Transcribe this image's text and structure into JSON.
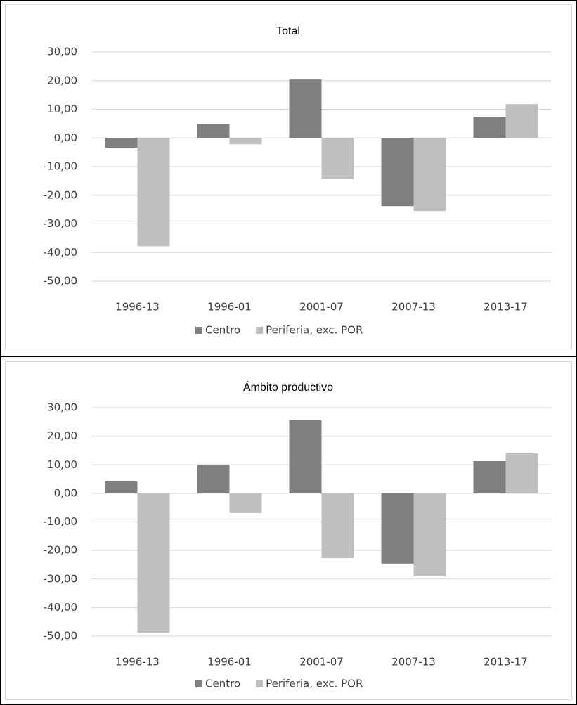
{
  "chart_data": [
    {
      "type": "bar",
      "title": "Total",
      "categories": [
        "1996-13",
        "1996-01",
        "2001-07",
        "2007-13",
        "2013-17"
      ],
      "series": [
        {
          "name": "Centro",
          "color": "#7f7f7f",
          "values": [
            -3.4,
            4.9,
            20.4,
            -23.8,
            7.4
          ]
        },
        {
          "name": "Periferia, exc. POR",
          "color": "#bfbfbf",
          "values": [
            -37.8,
            -2.2,
            -14.2,
            -25.5,
            11.8
          ]
        }
      ],
      "ylim": [
        -50,
        30
      ],
      "yticks": [
        {
          "value": -50,
          "label": "-50,00"
        },
        {
          "value": -40,
          "label": "-40,00"
        },
        {
          "value": -30,
          "label": "-30,00"
        },
        {
          "value": -20,
          "label": "-20,00"
        },
        {
          "value": -10,
          "label": "-10,00"
        },
        {
          "value": 0,
          "label": "0,00"
        },
        {
          "value": 10,
          "label": "10,00"
        },
        {
          "value": 20,
          "label": "20,00"
        },
        {
          "value": 30,
          "label": "30,00"
        }
      ],
      "grid": true,
      "legend": "bottom"
    },
    {
      "type": "bar",
      "title": "Ámbito productivo",
      "categories": [
        "1996-13",
        "1996-01",
        "2001-07",
        "2007-13",
        "2013-17"
      ],
      "series": [
        {
          "name": "Centro",
          "color": "#7f7f7f",
          "values": [
            4.2,
            10.1,
            25.6,
            -24.6,
            11.3
          ]
        },
        {
          "name": "Periferia, exc. POR",
          "color": "#bfbfbf",
          "values": [
            -48.8,
            -6.9,
            -22.7,
            -29.1,
            14.0
          ]
        }
      ],
      "ylim": [
        -50,
        30
      ],
      "yticks": [
        {
          "value": -50,
          "label": "-50,00"
        },
        {
          "value": -40,
          "label": "-40,00"
        },
        {
          "value": -30,
          "label": "-30,00"
        },
        {
          "value": -20,
          "label": "-20,00"
        },
        {
          "value": -10,
          "label": "-10,00"
        },
        {
          "value": 0,
          "label": "0,00"
        },
        {
          "value": 10,
          "label": "10,00"
        },
        {
          "value": 20,
          "label": "20,00"
        },
        {
          "value": 30,
          "label": "30,00"
        }
      ],
      "grid": true,
      "legend": "bottom"
    }
  ]
}
